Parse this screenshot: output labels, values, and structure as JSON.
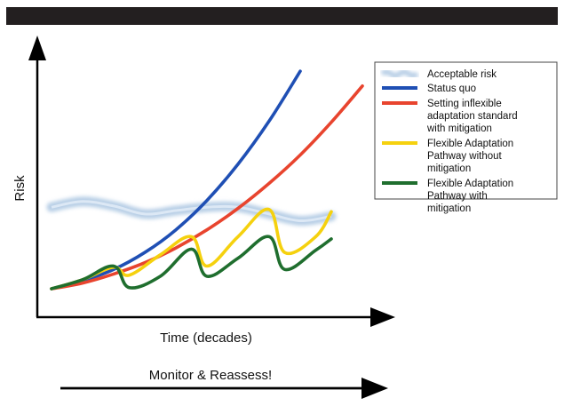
{
  "chart_data": {
    "type": "line",
    "title": "",
    "xlabel": "Time (decades)",
    "ylabel": "Risk",
    "xlim": [
      0,
      10
    ],
    "ylim": [
      0,
      10
    ],
    "grid": false,
    "ticks": false,
    "legend_position": "top-right",
    "footer_label": "Monitor & Reassess!",
    "series": [
      {
        "name": "Acceptable risk",
        "color": "#b8cfe6",
        "style": "wavy-band",
        "x": [
          0,
          1,
          2,
          3,
          4,
          5,
          6,
          7,
          8,
          9
        ],
        "y": [
          3.6,
          3.85,
          3.65,
          3.3,
          3.45,
          3.6,
          3.6,
          3.3,
          3.0,
          3.2
        ]
      },
      {
        "name": "Status quo",
        "color": "#1f4fb4",
        "x": [
          0,
          1,
          2,
          3,
          4,
          5,
          6,
          7,
          8
        ],
        "y": [
          0.0,
          0.35,
          0.85,
          1.6,
          2.6,
          3.9,
          5.5,
          7.4,
          9.6
        ]
      },
      {
        "name": "Setting inflexible adaptation standard with mitigation",
        "color": "#e8442e",
        "x": [
          0,
          1,
          2,
          3,
          4,
          5,
          6,
          7,
          8,
          9,
          10
        ],
        "y": [
          0.0,
          0.25,
          0.65,
          1.15,
          1.8,
          2.6,
          3.55,
          4.65,
          5.9,
          7.35,
          8.95
        ]
      },
      {
        "name": "Flexible Adaptation Pathway without mitigation",
        "color": "#f5d10e",
        "x": [
          0,
          1,
          2,
          2.5,
          3.5,
          4.5,
          5.0,
          6.0,
          7.0,
          7.5,
          8.5,
          9.0
        ],
        "y": [
          0.0,
          0.4,
          0.95,
          0.6,
          1.5,
          2.3,
          1.0,
          2.3,
          3.5,
          1.6,
          2.3,
          3.4
        ]
      },
      {
        "name": "Flexible Adaptation Pathway with mitigation",
        "color": "#1f6e2e",
        "x": [
          0,
          1,
          2,
          2.5,
          3.5,
          4.5,
          5.0,
          6.0,
          7.0,
          7.5,
          8.5,
          9.0
        ],
        "y": [
          0.0,
          0.4,
          1.0,
          0.05,
          0.55,
          1.75,
          0.55,
          1.35,
          2.3,
          0.85,
          1.7,
          2.2
        ]
      }
    ]
  }
}
